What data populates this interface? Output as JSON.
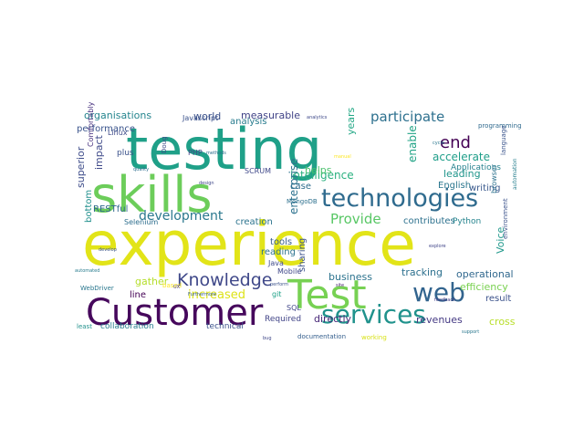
{
  "wordcloud": {
    "words": [
      {
        "text": "experience",
        "color": "#e2e418"
      },
      {
        "text": "testing",
        "color": "#1fa088"
      },
      {
        "text": "skills",
        "color": "#6ccd5a"
      },
      {
        "text": "Test",
        "color": "#77d153"
      },
      {
        "text": "Customer",
        "color": "#46085c"
      },
      {
        "text": "technologies",
        "color": "#2f6b8e"
      },
      {
        "text": "services",
        "color": "#20928c"
      },
      {
        "text": "web",
        "color": "#32648e"
      },
      {
        "text": "Knowledge",
        "color": "#3f4889"
      },
      {
        "text": "participate",
        "color": "#2d708e"
      },
      {
        "text": "development",
        "color": "#2a788e"
      },
      {
        "text": "end",
        "color": "#440154"
      },
      {
        "text": "Provide",
        "color": "#58c765"
      },
      {
        "text": "intelligence",
        "color": "#2ab07f"
      },
      {
        "text": "increased",
        "color": "#dde318"
      },
      {
        "text": "accelerate",
        "color": "#1f9e89"
      },
      {
        "text": "leading",
        "color": "#1f958b"
      },
      {
        "text": "writing",
        "color": "#38588c"
      },
      {
        "text": "enterprise",
        "color": "#2c728e"
      },
      {
        "text": "world",
        "color": "#3b528b"
      },
      {
        "text": "measurable",
        "color": "#404387"
      },
      {
        "text": "organisations",
        "color": "#25858e"
      },
      {
        "text": "performance",
        "color": "#3a548c"
      },
      {
        "text": "superior",
        "color": "#3e4c8a"
      },
      {
        "text": "impact",
        "color": "#3e4989"
      },
      {
        "text": "helps",
        "color": "#4ac16d"
      },
      {
        "text": "years",
        "color": "#22a785"
      },
      {
        "text": "enable",
        "color": "#20a386"
      },
      {
        "text": "gather",
        "color": "#b5de2b"
      },
      {
        "text": "business",
        "color": "#2c738e"
      },
      {
        "text": "tracking",
        "color": "#2d708e"
      },
      {
        "text": "operational",
        "color": "#31688e"
      },
      {
        "text": "efficiency",
        "color": "#7ad151"
      },
      {
        "text": "directly",
        "color": "#482878"
      },
      {
        "text": "revenues",
        "color": "#443983"
      },
      {
        "text": "collaboration",
        "color": "#287d8e"
      },
      {
        "text": "technical",
        "color": "#3b528b"
      },
      {
        "text": "Required",
        "color": "#414487"
      },
      {
        "text": "documentation",
        "color": "#355f8d"
      },
      {
        "text": "working",
        "color": "#d8e219"
      },
      {
        "text": "result",
        "color": "#3b528b"
      },
      {
        "text": "cross",
        "color": "#b8de29"
      },
      {
        "text": "contributes",
        "color": "#2d718e"
      },
      {
        "text": "Python",
        "color": "#25848e"
      },
      {
        "text": "English",
        "color": "#2a768e"
      },
      {
        "text": "Voice",
        "color": "#1f988b"
      },
      {
        "text": "Selenium",
        "color": "#2e6e8e"
      },
      {
        "text": "RESTful",
        "color": "#31688e"
      },
      {
        "text": "bottom",
        "color": "#21908d"
      },
      {
        "text": "line",
        "color": "#440154"
      },
      {
        "text": "reading",
        "color": "#2c728e"
      },
      {
        "text": "tools",
        "color": "#365d8d"
      },
      {
        "text": "creation",
        "color": "#2c738e"
      },
      {
        "text": "Java",
        "color": "#3e4a89"
      },
      {
        "text": "Mobile",
        "color": "#3f4788"
      },
      {
        "text": "SQL",
        "color": "#404588"
      },
      {
        "text": "git",
        "color": "#1fa187"
      },
      {
        "text": "sharing",
        "color": "#3b518b"
      },
      {
        "text": "case",
        "color": "#2e6d8e"
      },
      {
        "text": "MongoDB",
        "color": "#2d708e"
      },
      {
        "text": "SCRUM",
        "color": "#3f4889"
      },
      {
        "text": "PHP",
        "color": "#404688"
      },
      {
        "text": "Javascript",
        "color": "#3b528b"
      },
      {
        "text": "analysis",
        "color": "#287c8e"
      },
      {
        "text": "plus",
        "color": "#3b528b"
      },
      {
        "text": "Linux",
        "color": "#3e4a89"
      },
      {
        "text": "Comfortably",
        "color": "#46307e"
      },
      {
        "text": "programming",
        "color": "#306a8e"
      },
      {
        "text": "language",
        "color": "#3a548c"
      },
      {
        "text": "Applications",
        "color": "#26818e"
      },
      {
        "text": "automation",
        "color": "#277f8e"
      },
      {
        "text": "browser",
        "color": "#2c728e"
      },
      {
        "text": "based",
        "color": "#fde725"
      },
      {
        "text": "WebDriver",
        "color": "#2a778e"
      },
      {
        "text": "least",
        "color": "#21918c"
      },
      {
        "text": "support",
        "color": "#2a778e"
      },
      {
        "text": "environment",
        "color": "#3b528b"
      },
      {
        "text": "quality",
        "color": "#2e6e8e"
      },
      {
        "text": "design",
        "color": "#3f4788"
      },
      {
        "text": "develop",
        "color": "#3a548c"
      },
      {
        "text": "automated",
        "color": "#287c8e"
      },
      {
        "text": "cycle",
        "color": "#2a768e"
      },
      {
        "text": "explore",
        "color": "#404588"
      },
      {
        "text": "perform",
        "color": "#3b528b"
      },
      {
        "text": "feedback",
        "color": "#433e85"
      },
      {
        "text": "analytics",
        "color": "#3e4989"
      },
      {
        "text": "manual",
        "color": "#fde725"
      },
      {
        "text": "methods",
        "color": "#2e6e8e"
      },
      {
        "text": "Doug",
        "color": "#3e4c8a"
      },
      {
        "text": "UX",
        "color": "#453781"
      },
      {
        "text": "bug",
        "color": "#3f4788"
      },
      {
        "text": "site",
        "color": "#481f70"
      },
      {
        "text": "Furthermore",
        "color": "#355f8d"
      }
    ]
  }
}
